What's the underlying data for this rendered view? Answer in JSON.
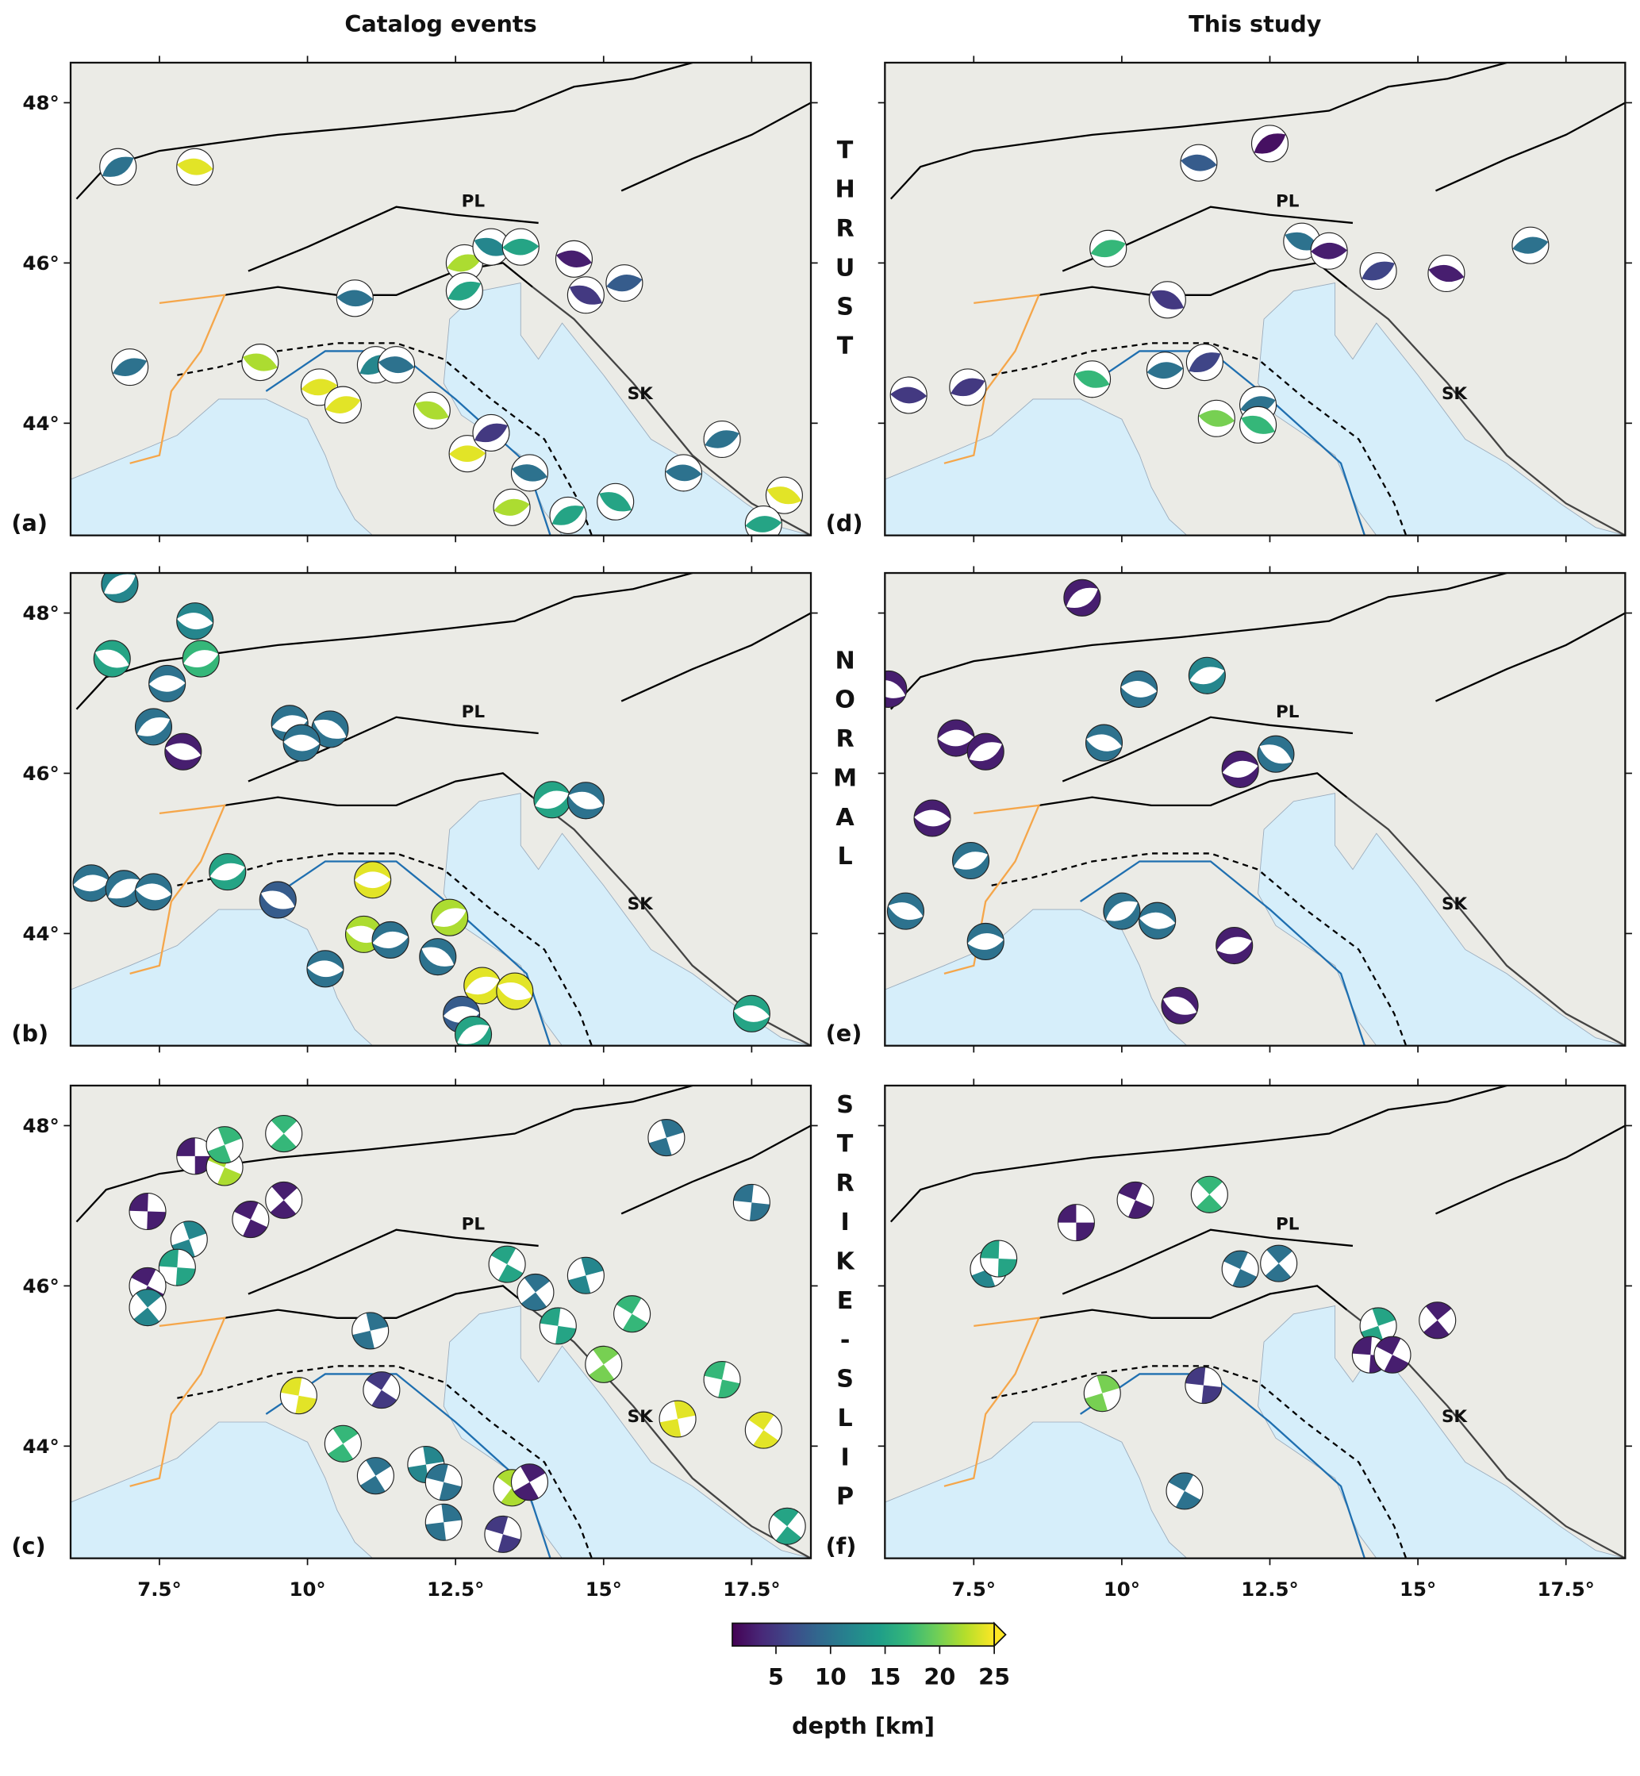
{
  "column_titles": [
    "Catalog events",
    "This study"
  ],
  "row_labels": [
    "THRUST",
    "NORMAL",
    "STRIKE-SLIP"
  ],
  "map": {
    "lonlim": [
      6,
      18.5
    ],
    "latlim": [
      42.6,
      48.5
    ],
    "lonticks": [
      {
        "value": 7.5,
        "label": "7.5°"
      },
      {
        "value": 10,
        "label": "10°"
      },
      {
        "value": 12.5,
        "label": "12.5°"
      },
      {
        "value": 15,
        "label": "15°"
      },
      {
        "value": 17.5,
        "label": "17.5°"
      }
    ],
    "latticks": [
      {
        "value": 44,
        "label": "44°"
      },
      {
        "value": 46,
        "label": "46°"
      },
      {
        "value": 48,
        "label": "48°"
      }
    ]
  },
  "place_labels": [
    "PL",
    "SK"
  ],
  "colorbar": {
    "label": "depth [km]",
    "lim": [
      1,
      25
    ],
    "ticks": [
      5,
      10,
      15,
      20,
      25
    ]
  },
  "panels": [
    {
      "label": "(a)",
      "mechanism": "thrust",
      "events": [
        {
          "lon": 6.8,
          "lat": 47.2,
          "depth": 10
        },
        {
          "lon": 8.1,
          "lat": 47.2,
          "depth": 24
        },
        {
          "lon": 12.65,
          "lat": 46.0,
          "depth": 22
        },
        {
          "lon": 13.1,
          "lat": 46.2,
          "depth": 12
        },
        {
          "lon": 13.6,
          "lat": 46.2,
          "depth": 15
        },
        {
          "lon": 12.65,
          "lat": 45.65,
          "depth": 15
        },
        {
          "lon": 14.5,
          "lat": 46.05,
          "depth": 3
        },
        {
          "lon": 15.35,
          "lat": 45.75,
          "depth": 8
        },
        {
          "lon": 14.7,
          "lat": 45.6,
          "depth": 5
        },
        {
          "lon": 10.8,
          "lat": 45.56,
          "depth": 10
        },
        {
          "lon": 7.0,
          "lat": 44.7,
          "depth": 10
        },
        {
          "lon": 9.2,
          "lat": 44.76,
          "depth": 22
        },
        {
          "lon": 10.2,
          "lat": 44.45,
          "depth": 24
        },
        {
          "lon": 11.15,
          "lat": 44.73,
          "depth": 12
        },
        {
          "lon": 11.5,
          "lat": 44.73,
          "depth": 10
        },
        {
          "lon": 10.6,
          "lat": 44.23,
          "depth": 24
        },
        {
          "lon": 12.1,
          "lat": 44.16,
          "depth": 22
        },
        {
          "lon": 12.7,
          "lat": 43.62,
          "depth": 24
        },
        {
          "lon": 13.1,
          "lat": 43.88,
          "depth": 5
        },
        {
          "lon": 13.75,
          "lat": 43.38,
          "depth": 10
        },
        {
          "lon": 13.45,
          "lat": 42.95,
          "depth": 22
        },
        {
          "lon": 15.2,
          "lat": 43.02,
          "depth": 15
        },
        {
          "lon": 16.35,
          "lat": 43.38,
          "depth": 10
        },
        {
          "lon": 17.0,
          "lat": 43.8,
          "depth": 10
        },
        {
          "lon": 18.05,
          "lat": 43.1,
          "depth": 24
        },
        {
          "lon": 17.7,
          "lat": 42.74,
          "depth": 15
        },
        {
          "lon": 14.4,
          "lat": 42.85,
          "depth": 15
        }
      ]
    },
    {
      "label": "(b)",
      "mechanism": "normal",
      "events": [
        {
          "lon": 6.83,
          "lat": 48.36,
          "depth": 12
        },
        {
          "lon": 8.1,
          "lat": 47.9,
          "depth": 12
        },
        {
          "lon": 8.2,
          "lat": 47.43,
          "depth": 17
        },
        {
          "lon": 6.7,
          "lat": 47.43,
          "depth": 15
        },
        {
          "lon": 7.63,
          "lat": 47.12,
          "depth": 10
        },
        {
          "lon": 7.4,
          "lat": 46.58,
          "depth": 10
        },
        {
          "lon": 7.9,
          "lat": 46.27,
          "depth": 3
        },
        {
          "lon": 9.7,
          "lat": 46.62,
          "depth": 10
        },
        {
          "lon": 10.38,
          "lat": 46.55,
          "depth": 10
        },
        {
          "lon": 9.9,
          "lat": 46.38,
          "depth": 10
        },
        {
          "lon": 14.13,
          "lat": 45.67,
          "depth": 15
        },
        {
          "lon": 14.7,
          "lat": 45.66,
          "depth": 10
        },
        {
          "lon": 6.35,
          "lat": 44.63,
          "depth": 10
        },
        {
          "lon": 6.9,
          "lat": 44.56,
          "depth": 10
        },
        {
          "lon": 7.4,
          "lat": 44.52,
          "depth": 10
        },
        {
          "lon": 8.65,
          "lat": 44.77,
          "depth": 15
        },
        {
          "lon": 9.5,
          "lat": 44.42,
          "depth": 8
        },
        {
          "lon": 11.1,
          "lat": 44.67,
          "depth": 24
        },
        {
          "lon": 12.4,
          "lat": 44.2,
          "depth": 22
        },
        {
          "lon": 10.95,
          "lat": 43.99,
          "depth": 22
        },
        {
          "lon": 11.4,
          "lat": 43.92,
          "depth": 10
        },
        {
          "lon": 12.2,
          "lat": 43.71,
          "depth": 10
        },
        {
          "lon": 10.3,
          "lat": 43.56,
          "depth": 10
        },
        {
          "lon": 12.95,
          "lat": 43.35,
          "depth": 24
        },
        {
          "lon": 13.5,
          "lat": 43.28,
          "depth": 24
        },
        {
          "lon": 12.6,
          "lat": 42.99,
          "depth": 8
        },
        {
          "lon": 12.8,
          "lat": 42.74,
          "depth": 15
        },
        {
          "lon": 17.5,
          "lat": 43.0,
          "depth": 15
        }
      ]
    },
    {
      "label": "(c)",
      "mechanism": "strike-slip",
      "events": [
        {
          "lon": 8.1,
          "lat": 47.62,
          "depth": 3
        },
        {
          "lon": 8.6,
          "lat": 47.48,
          "depth": 22
        },
        {
          "lon": 9.6,
          "lat": 47.9,
          "depth": 17
        },
        {
          "lon": 8.6,
          "lat": 47.76,
          "depth": 17
        },
        {
          "lon": 7.3,
          "lat": 46.93,
          "depth": 3
        },
        {
          "lon": 9.04,
          "lat": 46.83,
          "depth": 3
        },
        {
          "lon": 9.6,
          "lat": 47.07,
          "depth": 3
        },
        {
          "lon": 8.0,
          "lat": 46.58,
          "depth": 12
        },
        {
          "lon": 7.8,
          "lat": 46.23,
          "depth": 15
        },
        {
          "lon": 7.3,
          "lat": 46.0,
          "depth": 3
        },
        {
          "lon": 7.3,
          "lat": 45.73,
          "depth": 12
        },
        {
          "lon": 16.06,
          "lat": 47.85,
          "depth": 10
        },
        {
          "lon": 17.5,
          "lat": 47.04,
          "depth": 10
        },
        {
          "lon": 13.37,
          "lat": 46.27,
          "depth": 15
        },
        {
          "lon": 13.85,
          "lat": 45.92,
          "depth": 10
        },
        {
          "lon": 14.7,
          "lat": 46.13,
          "depth": 12
        },
        {
          "lon": 14.23,
          "lat": 45.5,
          "depth": 15
        },
        {
          "lon": 15.48,
          "lat": 45.65,
          "depth": 17
        },
        {
          "lon": 15.0,
          "lat": 45.02,
          "depth": 20
        },
        {
          "lon": 11.06,
          "lat": 45.44,
          "depth": 10
        },
        {
          "lon": 9.85,
          "lat": 44.63,
          "depth": 24
        },
        {
          "lon": 11.25,
          "lat": 44.7,
          "depth": 5
        },
        {
          "lon": 10.6,
          "lat": 44.03,
          "depth": 17
        },
        {
          "lon": 16.25,
          "lat": 44.34,
          "depth": 24
        },
        {
          "lon": 17.0,
          "lat": 44.83,
          "depth": 17
        },
        {
          "lon": 17.7,
          "lat": 44.2,
          "depth": 24
        },
        {
          "lon": 11.15,
          "lat": 43.63,
          "depth": 10
        },
        {
          "lon": 12.0,
          "lat": 43.77,
          "depth": 12
        },
        {
          "lon": 12.3,
          "lat": 43.55,
          "depth": 10
        },
        {
          "lon": 13.45,
          "lat": 43.48,
          "depth": 22
        },
        {
          "lon": 13.75,
          "lat": 43.55,
          "depth": 3
        },
        {
          "lon": 12.3,
          "lat": 43.05,
          "depth": 10
        },
        {
          "lon": 13.3,
          "lat": 42.9,
          "depth": 5
        },
        {
          "lon": 18.1,
          "lat": 43.0,
          "depth": 15
        }
      ]
    },
    {
      "label": "(d)",
      "mechanism": "thrust",
      "events": [
        {
          "lon": 12.5,
          "lat": 47.49,
          "depth": 2
        },
        {
          "lon": 11.3,
          "lat": 47.25,
          "depth": 8
        },
        {
          "lon": 9.77,
          "lat": 46.18,
          "depth": 17
        },
        {
          "lon": 13.04,
          "lat": 46.27,
          "depth": 10
        },
        {
          "lon": 13.5,
          "lat": 46.15,
          "depth": 3
        },
        {
          "lon": 14.33,
          "lat": 45.9,
          "depth": 6
        },
        {
          "lon": 15.48,
          "lat": 45.87,
          "depth": 3
        },
        {
          "lon": 16.9,
          "lat": 46.22,
          "depth": 10
        },
        {
          "lon": 10.77,
          "lat": 45.54,
          "depth": 5
        },
        {
          "lon": 6.4,
          "lat": 44.35,
          "depth": 5
        },
        {
          "lon": 7.4,
          "lat": 44.45,
          "depth": 5
        },
        {
          "lon": 9.5,
          "lat": 44.55,
          "depth": 17
        },
        {
          "lon": 10.73,
          "lat": 44.66,
          "depth": 10
        },
        {
          "lon": 11.4,
          "lat": 44.76,
          "depth": 6
        },
        {
          "lon": 11.6,
          "lat": 44.06,
          "depth": 20
        },
        {
          "lon": 12.3,
          "lat": 44.23,
          "depth": 10
        },
        {
          "lon": 12.3,
          "lat": 43.98,
          "depth": 17
        }
      ]
    },
    {
      "label": "(e)",
      "mechanism": "normal",
      "events": [
        {
          "lon": 9.33,
          "lat": 48.19,
          "depth": 3
        },
        {
          "lon": 10.29,
          "lat": 47.05,
          "depth": 10
        },
        {
          "lon": 11.44,
          "lat": 47.22,
          "depth": 12
        },
        {
          "lon": 6.06,
          "lat": 47.05,
          "depth": 3
        },
        {
          "lon": 7.2,
          "lat": 46.44,
          "depth": 3
        },
        {
          "lon": 7.7,
          "lat": 46.27,
          "depth": 3
        },
        {
          "lon": 9.7,
          "lat": 46.38,
          "depth": 10
        },
        {
          "lon": 12.0,
          "lat": 46.05,
          "depth": 3
        },
        {
          "lon": 12.6,
          "lat": 46.24,
          "depth": 10
        },
        {
          "lon": 6.8,
          "lat": 45.44,
          "depth": 3
        },
        {
          "lon": 7.45,
          "lat": 44.91,
          "depth": 10
        },
        {
          "lon": 6.35,
          "lat": 44.28,
          "depth": 10
        },
        {
          "lon": 7.7,
          "lat": 43.9,
          "depth": 10
        },
        {
          "lon": 10.0,
          "lat": 44.28,
          "depth": 10
        },
        {
          "lon": 10.6,
          "lat": 44.16,
          "depth": 10
        },
        {
          "lon": 11.9,
          "lat": 43.85,
          "depth": 3
        },
        {
          "lon": 10.98,
          "lat": 43.1,
          "depth": 3
        }
      ]
    },
    {
      "label": "(f)",
      "mechanism": "strike-slip",
      "events": [
        {
          "lon": 9.23,
          "lat": 46.79,
          "depth": 3
        },
        {
          "lon": 10.23,
          "lat": 47.07,
          "depth": 3
        },
        {
          "lon": 11.48,
          "lat": 47.14,
          "depth": 17
        },
        {
          "lon": 7.75,
          "lat": 46.21,
          "depth": 12
        },
        {
          "lon": 7.92,
          "lat": 46.34,
          "depth": 15
        },
        {
          "lon": 12.0,
          "lat": 46.21,
          "depth": 10
        },
        {
          "lon": 12.65,
          "lat": 46.28,
          "depth": 10
        },
        {
          "lon": 14.33,
          "lat": 45.5,
          "depth": 15
        },
        {
          "lon": 14.2,
          "lat": 45.14,
          "depth": 3
        },
        {
          "lon": 14.57,
          "lat": 45.14,
          "depth": 3
        },
        {
          "lon": 15.33,
          "lat": 45.57,
          "depth": 3
        },
        {
          "lon": 9.67,
          "lat": 44.66,
          "depth": 20
        },
        {
          "lon": 11.38,
          "lat": 44.76,
          "depth": 5
        },
        {
          "lon": 11.06,
          "lat": 43.44,
          "depth": 10
        }
      ]
    }
  ]
}
